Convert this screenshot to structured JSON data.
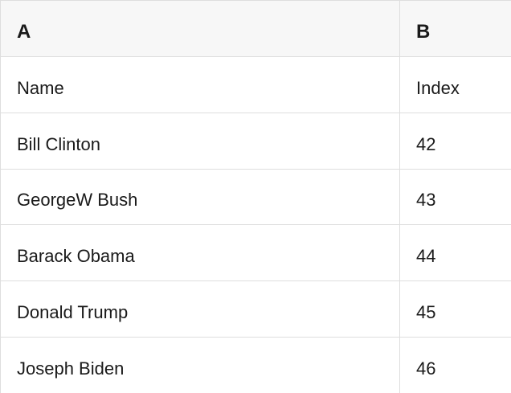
{
  "sheet": {
    "columns": [
      "A",
      "B"
    ],
    "rows": [
      [
        "Name",
        "Index"
      ],
      [
        "Bill Clinton",
        "42"
      ],
      [
        "GeorgeW Bush",
        "43"
      ],
      [
        "Barack Obama",
        "44"
      ],
      [
        "Donald Trump",
        "45"
      ],
      [
        "Joseph Biden",
        "46"
      ]
    ]
  },
  "colors": {
    "header_background": "#f7f7f7",
    "cell_background": "#ffffff",
    "border": "#dedede",
    "text": "#1a1a1a"
  }
}
